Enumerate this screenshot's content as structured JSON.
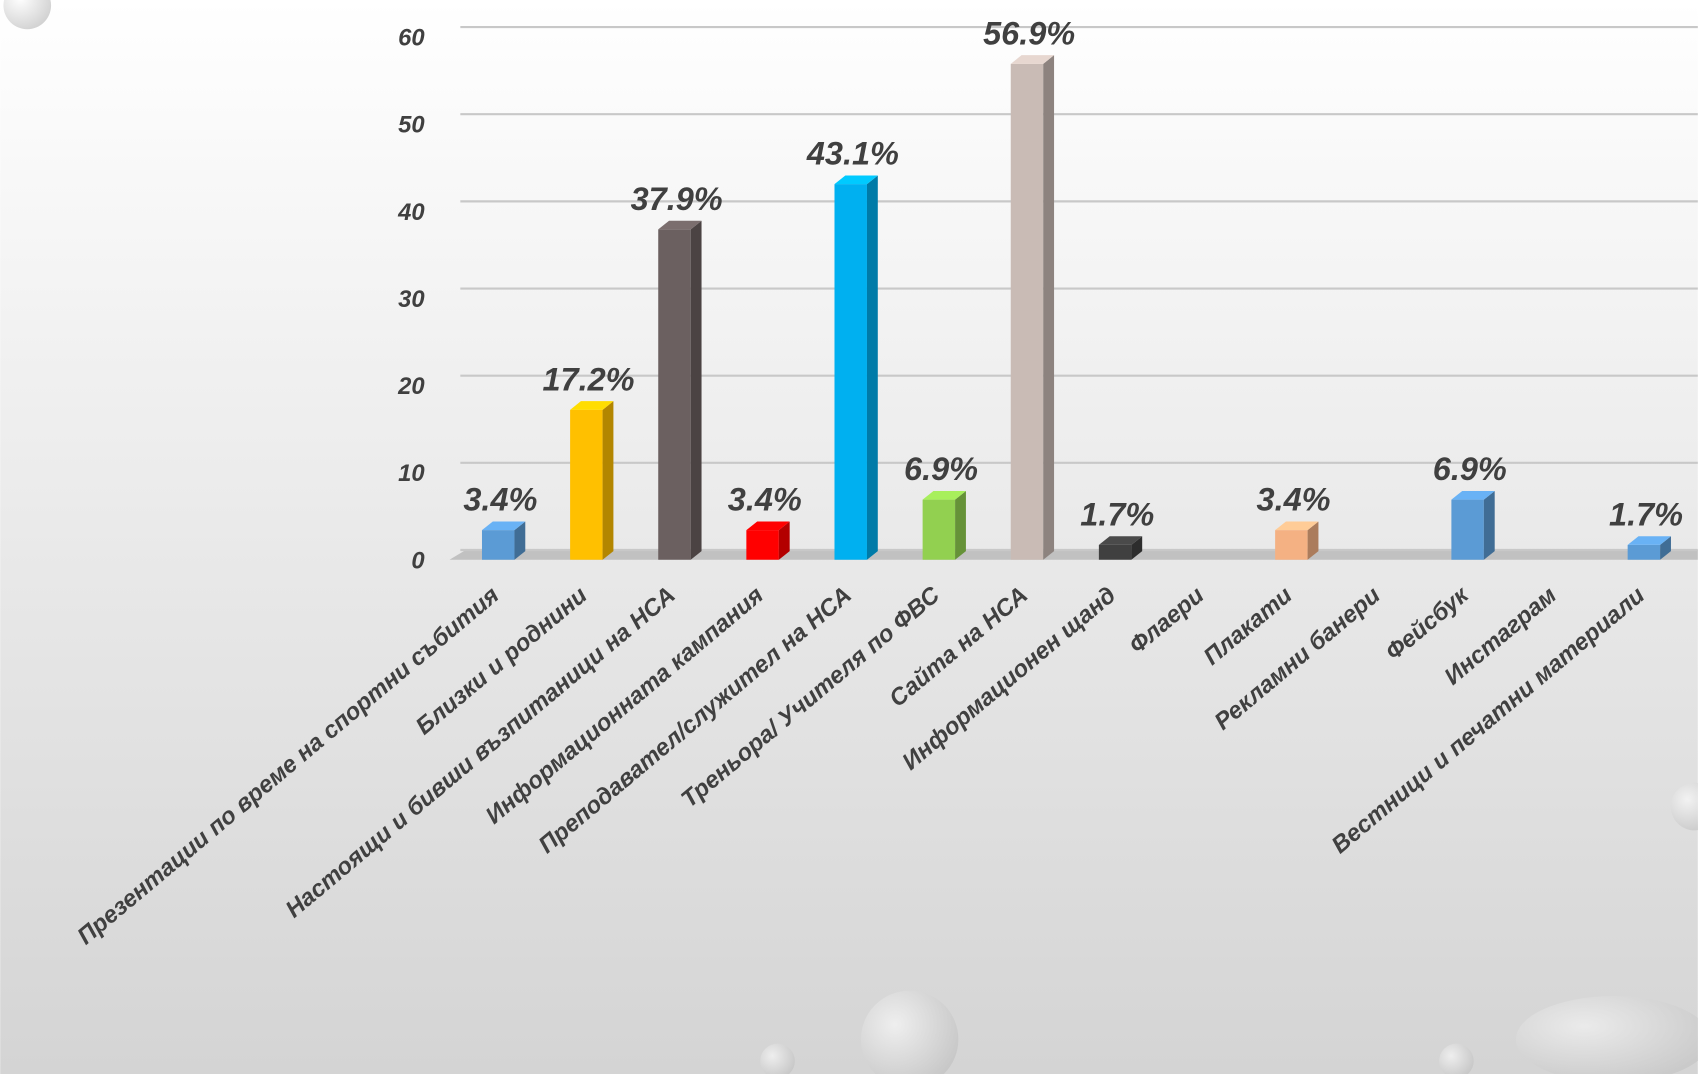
{
  "chart_data": {
    "type": "bar3d",
    "categories": [
      "Презентации по време на спортни събития",
      "Близки и роднини",
      "Настоящи и бивши възпитаници на НСА",
      "Информационната кампания",
      "Преподавател/служител на НСА",
      "Треньора/ Учителя по ФВС",
      "Сайта на НСА",
      "Информационен щанд",
      "Флаери",
      "Плакати",
      "Рекламни банери",
      "Фейсбук",
      "Инстаграм",
      "Вестници и печатни материали"
    ],
    "values": [
      3.4,
      17.2,
      37.9,
      3.4,
      43.1,
      6.9,
      56.9,
      1.7,
      null,
      3.4,
      null,
      6.9,
      null,
      1.7
    ],
    "value_labels": [
      "3.4%",
      "17.2%",
      "37.9%",
      "3.4%",
      "43.1%",
      "6.9%",
      "56.9%",
      "1.7%",
      null,
      "3.4%",
      null,
      "6.9%",
      null,
      "1.7%"
    ],
    "colors": [
      "#5b9bd5",
      "#ffc000",
      "#6b6060",
      "#ff0000",
      "#00b0f0",
      "#92d050",
      "#c9bbb5",
      "#404040",
      "#5b9bd5",
      "#f4b183",
      "#5b9bd5",
      "#5b9bd5",
      "#5b9bd5",
      "#5b9bd5"
    ],
    "ylim": [
      0,
      60
    ],
    "yticks": [
      0,
      10,
      20,
      30,
      40,
      50,
      60
    ],
    "grid": true
  }
}
